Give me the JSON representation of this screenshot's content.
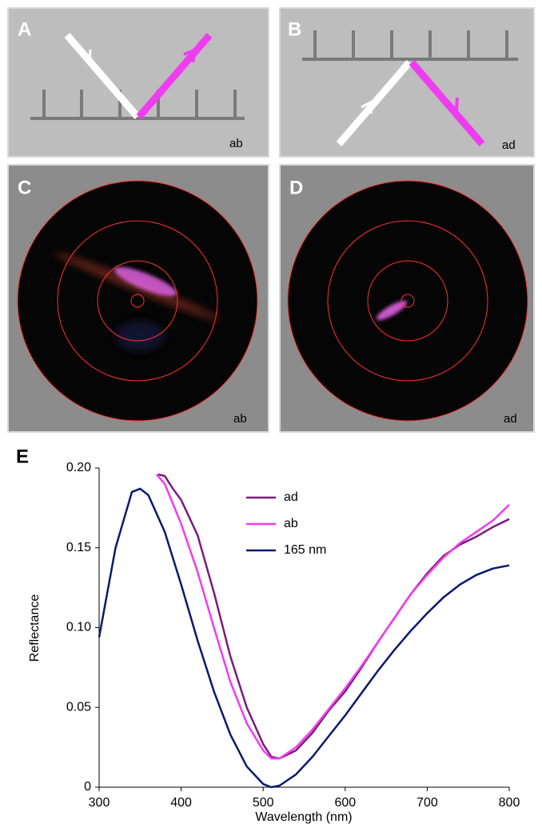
{
  "panels": [
    {
      "label": "A",
      "caption": "ab"
    },
    {
      "label": "B",
      "caption": "ad"
    },
    {
      "label": "C",
      "caption": "ab"
    },
    {
      "label": "D",
      "caption": "ad"
    }
  ],
  "chart_data": {
    "type": "line",
    "label": "E",
    "x_label": "Wavelength (nm)",
    "y_label": "Reflectance",
    "xlim": [
      300,
      800
    ],
    "xticks": [
      300,
      400,
      500,
      600,
      700,
      800
    ],
    "ylim": [
      0,
      0.2
    ],
    "yticks": [
      0,
      0.05,
      {
        "value": 0.1,
        "label": "0.10"
      },
      0.15,
      {
        "value": 0.2,
        "label": "0.20"
      }
    ],
    "legend": "upper-center",
    "series": [
      {
        "name": "ad",
        "color": "#7a1c7a",
        "x": [
          372,
          380,
          390,
          400,
          420,
          440,
          460,
          480,
          500,
          510,
          520,
          540,
          560,
          580,
          600,
          620,
          640,
          660,
          680,
          700,
          720,
          740,
          760,
          780,
          800
        ],
        "values": [
          0.196,
          0.195,
          0.187,
          0.18,
          0.158,
          0.122,
          0.082,
          0.05,
          0.027,
          0.019,
          0.018,
          0.023,
          0.034,
          0.048,
          0.06,
          0.075,
          0.091,
          0.106,
          0.121,
          0.134,
          0.145,
          0.152,
          0.157,
          0.163,
          0.168
        ]
      },
      {
        "name": "ab",
        "color": "#f03cf0",
        "x": [
          370,
          380,
          400,
          420,
          440,
          460,
          480,
          500,
          510,
          520,
          540,
          560,
          580,
          600,
          620,
          640,
          660,
          680,
          700,
          720,
          740,
          760,
          780,
          800
        ],
        "values": [
          0.196,
          0.19,
          0.165,
          0.135,
          0.1,
          0.066,
          0.04,
          0.023,
          0.018,
          0.018,
          0.025,
          0.036,
          0.049,
          0.062,
          0.076,
          0.091,
          0.106,
          0.121,
          0.133,
          0.144,
          0.153,
          0.16,
          0.167,
          0.177
        ]
      },
      {
        "name": "165 nm",
        "color": "#0b1870",
        "x": [
          300,
          320,
          340,
          350,
          360,
          380,
          400,
          420,
          440,
          460,
          480,
          500,
          510,
          520,
          540,
          560,
          580,
          600,
          620,
          640,
          660,
          680,
          700,
          720,
          740,
          760,
          780,
          800
        ],
        "values": [
          0.094,
          0.15,
          0.185,
          0.187,
          0.183,
          0.16,
          0.127,
          0.092,
          0.06,
          0.033,
          0.013,
          0.002,
          0,
          0.001,
          0.008,
          0.019,
          0.032,
          0.045,
          0.059,
          0.073,
          0.086,
          0.098,
          0.109,
          0.119,
          0.127,
          0.133,
          0.137,
          0.139
        ]
      }
    ]
  }
}
